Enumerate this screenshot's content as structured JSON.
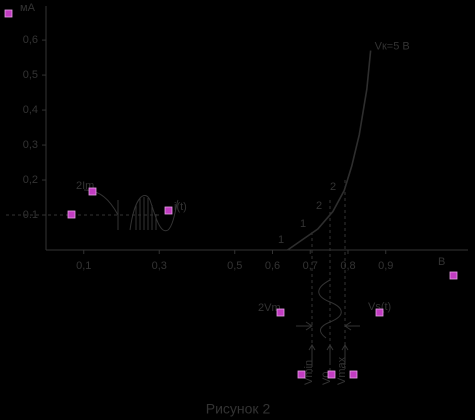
{
  "chart_data": {
    "type": "line",
    "x_label": "В",
    "y_label": "мА",
    "xlim": [
      0,
      1.11
    ],
    "ylim": [
      0,
      0.686
    ],
    "xticks": [
      {
        "value": 0.1,
        "label": "0,1"
      },
      {
        "value": 0.3,
        "label": "0,3"
      },
      {
        "value": 0.5,
        "label": "0,5"
      },
      {
        "value": 0.6,
        "label": "0,6"
      },
      {
        "value": 0.7,
        "label": "0,7"
      },
      {
        "value": 0.8,
        "label": "0,8"
      },
      {
        "value": 0.9,
        "label": "0,9"
      }
    ],
    "yticks": [
      0.1,
      {
        "value": 0.2,
        "label": "0,2"
      },
      {
        "value": 0.3,
        "label": "0,3"
      },
      {
        "value": 0.4,
        "label": "0,4"
      },
      {
        "value": 0.5,
        "label": "0,5"
      },
      {
        "value": 0.6,
        "label": "0,6"
      }
    ],
    "series": [
      {
        "name": "Vк=5 В",
        "color": "#2e2e2e",
        "x": [
          0.64,
          0.68,
          0.72,
          0.76,
          0.79,
          0.81,
          0.83,
          0.85,
          0.86
        ],
        "values": [
          0.0,
          0.03,
          0.06,
          0.11,
          0.17,
          0.24,
          0.33,
          0.46,
          0.57
        ]
      }
    ],
    "point_labels": [
      "1",
      "1",
      "2",
      "2"
    ],
    "current_amplitude": "2Im",
    "current_signal": "i(t)",
    "voltage_amplitude": "2Vm",
    "voltage_signal": "Vs(t)",
    "voltage_levels": [
      "Vmin",
      "V0",
      "Vmax"
    ]
  },
  "caption": "Рисунок 2"
}
